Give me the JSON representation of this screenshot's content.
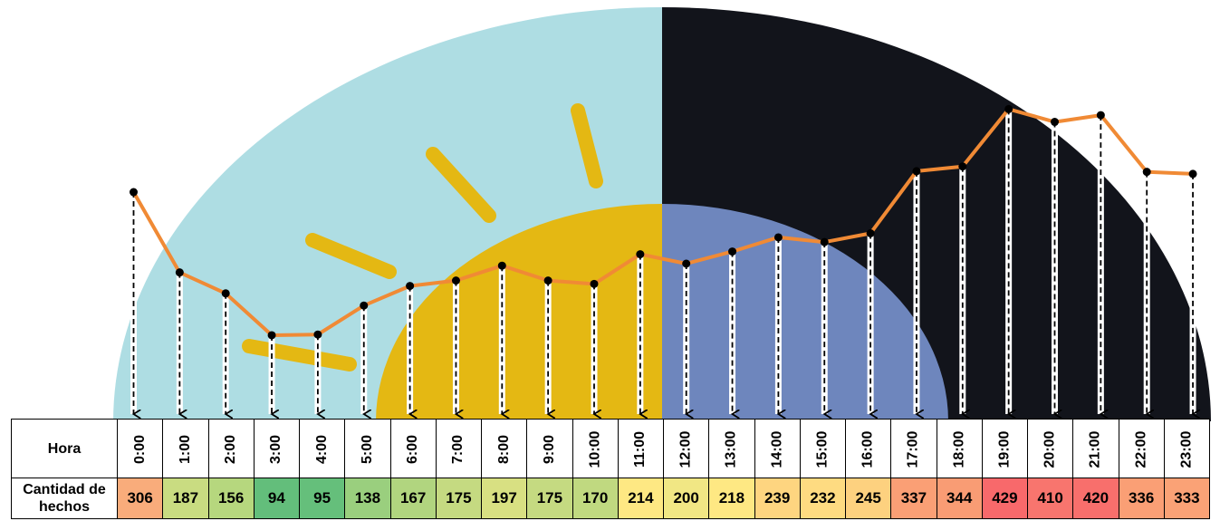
{
  "chart_data": {
    "type": "line",
    "row_labels": {
      "hour": "Hora",
      "count": "Cantidad de hechos"
    },
    "categories": [
      "0:00",
      "1:00",
      "2:00",
      "3:00",
      "4:00",
      "5:00",
      "6:00",
      "7:00",
      "8:00",
      "9:00",
      "10:00",
      "11:00",
      "12:00",
      "13:00",
      "14:00",
      "15:00",
      "16:00",
      "17:00",
      "18:00",
      "19:00",
      "20:00",
      "21:00",
      "22:00",
      "23:00"
    ],
    "series": [
      {
        "values": [
          306,
          187,
          156,
          94,
          95,
          138,
          167,
          175,
          197,
          175,
          170,
          214,
          200,
          218,
          239,
          232,
          245,
          337,
          344,
          429,
          410,
          420,
          336,
          333
        ]
      }
    ],
    "line_color": "#f08a35",
    "cell_colors": [
      "#f9ac7b",
      "#c9dc81",
      "#b6d77e",
      "#63be7b",
      "#65bf7b",
      "#9acf7e",
      "#b1d57f",
      "#c5da81",
      "#d8e082",
      "#c5da81",
      "#c0d980",
      "#fee883",
      "#f1e784",
      "#fee883",
      "#fed580",
      "#fedb81",
      "#fdd17f",
      "#fa9f75",
      "#f99c74",
      "#f8696b",
      "#f8756e",
      "#f86f6c",
      "#fa9f75",
      "#faa276"
    ],
    "background": {
      "day_sky": "#aedde3",
      "night_sky": "#12141b",
      "sun": "#e4b813",
      "moon": "#6e86bd",
      "rays": "#e4b813"
    },
    "grid": false,
    "legend": "none"
  }
}
